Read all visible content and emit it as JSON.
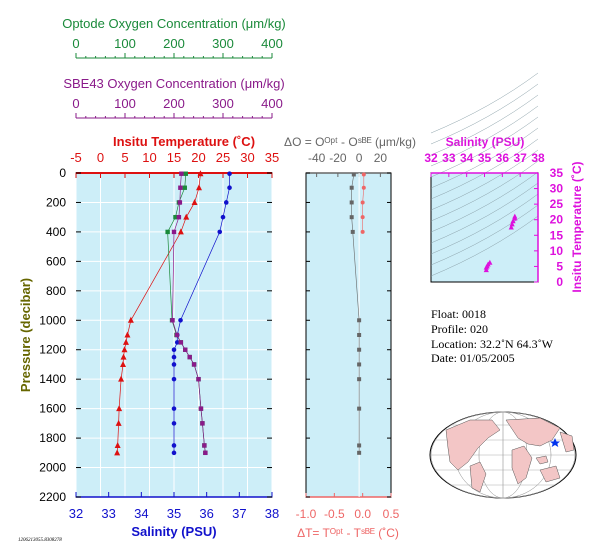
{
  "colors": {
    "optode": "#1a8a3a",
    "sbe": "#8a1a8a",
    "temperature": "#dd1111",
    "salinity": "#1111cc",
    "pressure": "#666600",
    "delta_o": "#666666",
    "delta_t": "#ee6666",
    "ts_axis": "#dd11dd",
    "panel_fill": "#cdeef8",
    "land": "#f3c6c6"
  },
  "top_axes": {
    "optode": {
      "label": "Optode Oxygen Concentration (μm/kg)",
      "ticks": [
        "0",
        "100",
        "200",
        "300",
        "400"
      ]
    },
    "sbe": {
      "label": "SBE43 Oxygen Concentration (μm/kg)",
      "ticks": [
        "0",
        "100",
        "200",
        "300",
        "400"
      ]
    }
  },
  "main_panel": {
    "temp_label": "Insitu Temperature (˚C)",
    "temp_ticks": [
      "-5",
      "0",
      "5",
      "10",
      "15",
      "20",
      "25",
      "30",
      "35"
    ],
    "sal_label": "Salinity (PSU)",
    "sal_ticks": [
      "32",
      "33",
      "34",
      "35",
      "36",
      "37",
      "38"
    ],
    "pressure_label": "Pressure (decibar)",
    "pressure_ticks": [
      "0",
      "200",
      "400",
      "600",
      "800",
      "1000",
      "1200",
      "1400",
      "1600",
      "1800",
      "2000",
      "2200"
    ]
  },
  "diff_panel": {
    "o_label": "ΔO = Oᴼᵖᵗ - Oˢᴮᴱ (μm/kg)",
    "o_ticks": [
      "-40",
      "-20",
      "0",
      "20"
    ],
    "t_label": "ΔT= Tᴼᵖᵗ - Tˢᴮᴱ (˚C)",
    "t_ticks": [
      "-1.0",
      "-0.5",
      "0.0",
      "0.5"
    ]
  },
  "ts_panel": {
    "sal_label": "Salinity (PSU)",
    "sal_ticks": [
      "32",
      "33",
      "34",
      "35",
      "36",
      "37",
      "38"
    ],
    "temp_label": "Insitu Temperature (˚C)",
    "temp_ticks": [
      "0",
      "5",
      "10",
      "15",
      "20",
      "25",
      "30",
      "35"
    ]
  },
  "info": {
    "float": "Float:  0018",
    "profile": "Profile:  020",
    "location": "Location:  32.2˚N  64.3˚W",
    "date": "Date:  01/05/2005"
  },
  "footer_id": "1206213055.8308278",
  "chart_data": {
    "type": "line",
    "pressure_range": [
      0,
      2200
    ],
    "axes": {
      "temperature_xlim": [
        -5,
        35
      ],
      "salinity_xlim": [
        32,
        38
      ],
      "oxygen_xlim": [
        0,
        400
      ],
      "delta_o_xlim": [
        -50,
        30
      ],
      "delta_t_xlim": [
        -1.0,
        0.5
      ],
      "ts_salinity_xlim": [
        32,
        38
      ],
      "ts_temperature_ylim": [
        0,
        35
      ]
    },
    "pressure": [
      5,
      100,
      200,
      300,
      400,
      1000,
      1100,
      1150,
      1200,
      1250,
      1300,
      1400,
      1600,
      1700,
      1850,
      1900
    ],
    "series": [
      {
        "name": "Insitu Temperature (˚C)",
        "values": [
          20.4,
          20.1,
          19.2,
          17.5,
          16.4,
          6.2,
          5.5,
          5.2,
          4.9,
          4.7,
          4.6,
          4.2,
          3.8,
          3.7,
          3.5,
          3.4
        ]
      },
      {
        "name": "Salinity (PSU)",
        "values": [
          36.7,
          36.7,
          36.6,
          36.5,
          36.4,
          35.2,
          35.1,
          35.1,
          35.0,
          35.0,
          35.0,
          35.0,
          35.0,
          35.0,
          35.0,
          35.0
        ]
      },
      {
        "name": "Optode Oxygen Concentration (μm/kg)",
        "values": [
          224,
          222,
          210,
          203,
          187,
          196,
          205,
          214,
          223,
          232,
          241,
          250,
          255,
          258,
          262,
          264
        ]
      },
      {
        "name": "SBE43 Oxygen Concentration (μm/kg)",
        "values": [
          215,
          213,
          212,
          210,
          200,
          197,
          206,
          214,
          223,
          232,
          241,
          250,
          255,
          258,
          262,
          264
        ]
      }
    ],
    "delta_o": {
      "pressure": [
        10,
        100,
        200,
        300,
        400,
        1000,
        1100,
        1200,
        1300,
        1400,
        1600,
        1850,
        1900
      ],
      "values": [
        -5,
        -7,
        -7,
        -7,
        -6,
        0,
        0,
        0,
        0,
        0,
        0,
        0,
        0
      ]
    },
    "delta_t": {
      "pressure": [
        10,
        100,
        200,
        300,
        400
      ],
      "values": [
        0.02,
        0.02,
        0.0,
        0.0,
        0.0
      ]
    },
    "ts_points": {
      "salinity": [
        36.7,
        36.7,
        36.6,
        36.55,
        36.5,
        35.3,
        35.2,
        35.15,
        35.1,
        35.1
      ],
      "temperature": [
        21,
        20.4,
        19.5,
        18.5,
        17.5,
        6.2,
        5.6,
        5.0,
        4.6,
        3.8
      ]
    }
  }
}
